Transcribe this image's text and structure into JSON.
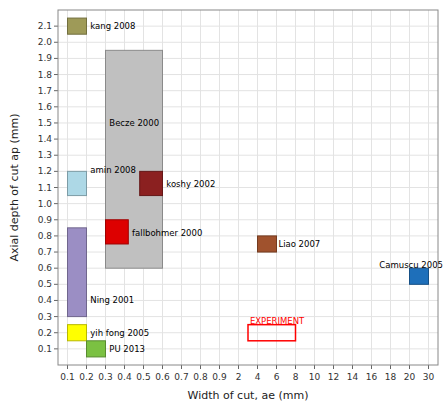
{
  "chart_data": {
    "type": "rectangles",
    "xlabel": "Width of cut, ae (mm)",
    "ylabel": "Axial depth of cut ap (mm)",
    "xticks": [
      0.1,
      0.2,
      0.3,
      0.4,
      0.5,
      0.6,
      0.7,
      0.8,
      0.9,
      2,
      4,
      6,
      8,
      10,
      12,
      14,
      16,
      18,
      20,
      30
    ],
    "yticks": [
      0.1,
      0.2,
      0.3,
      0.4,
      0.5,
      0.6,
      0.7,
      0.8,
      0.9,
      {
        "value": 1.0,
        "label": "1.0"
      },
      1.1,
      1.2,
      1.3,
      1.4,
      1.5,
      1.6,
      1.7,
      1.8,
      1.9,
      {
        "value": 2.0,
        "label": "2.0"
      },
      2.1
    ],
    "ylim": [
      0.0,
      2.2
    ],
    "grid": true,
    "series": [
      {
        "type": "box",
        "color": "#9e9a58",
        "x0": 0.1,
        "x1": 0.2,
        "y0": 2.05,
        "y1": 2.15
      },
      {
        "type": "box",
        "color": "#c0c0c0",
        "x0": 0.3,
        "x1": 0.6,
        "y0": 0.6,
        "y1": 1.95
      },
      {
        "type": "box",
        "color": "#add8e6",
        "x0": 0.1,
        "x1": 0.2,
        "y0": 1.05,
        "y1": 1.2
      },
      {
        "type": "box",
        "color": "#8b2020",
        "x0": 0.48,
        "x1": 0.6,
        "y0": 1.05,
        "y1": 1.2
      },
      {
        "type": "box",
        "color": "#dd0000",
        "x0": 0.3,
        "x1": 0.42,
        "y0": 0.75,
        "y1": 0.9
      },
      {
        "type": "box",
        "color": "#9b8ec4",
        "x0": 0.1,
        "x1": 0.2,
        "y0": 0.3,
        "y1": 0.85
      },
      {
        "type": "box",
        "color": "#ffff00",
        "x0": 0.1,
        "x1": 0.2,
        "y0": 0.15,
        "y1": 0.25
      },
      {
        "type": "box",
        "color": "#7bc142",
        "x0": 0.2,
        "x1": 0.3,
        "y0": 0.05,
        "y1": 0.15
      },
      {
        "type": "box",
        "color": "#a0522d",
        "x0": 4.0,
        "x1": 6.0,
        "y0": 0.7,
        "y1": 0.8
      },
      {
        "type": "box",
        "color": "#1e6fba",
        "x0": 20.0,
        "x1": 30.0,
        "y0": 0.5,
        "y1": 0.6
      },
      {
        "type": "outline",
        "color": "#ff0000",
        "x0": 3.0,
        "x1": 8.0,
        "y0": 0.15,
        "y1": 0.25
      }
    ],
    "annotations": [
      {
        "text": "kang 2008",
        "x": 0.22,
        "y": 2.1
      },
      {
        "text": "Becze 2000",
        "x": 0.32,
        "y": 1.5
      },
      {
        "text": "amin 2008",
        "x": 0.22,
        "y": 1.21
      },
      {
        "text": "koshy 2002",
        "x": 0.62,
        "y": 1.12
      },
      {
        "text": "fallbohmer 2000",
        "x": 0.44,
        "y": 0.82
      },
      {
        "text": "Ning 2001",
        "x": 0.22,
        "y": 0.4
      },
      {
        "text": "yih fong 2005",
        "x": 0.22,
        "y": 0.2
      },
      {
        "text": "PU 2013",
        "x": 0.32,
        "y": 0.1
      },
      {
        "text": "Liao 2007",
        "x": 6.2,
        "y": 0.75
      },
      {
        "text": "Camuscu 2005",
        "x": 20.2,
        "y": 0.62
      },
      {
        "text": "EXPERIMENT",
        "x": 3.2,
        "y": 0.27,
        "color": "#ff0000"
      }
    ]
  }
}
